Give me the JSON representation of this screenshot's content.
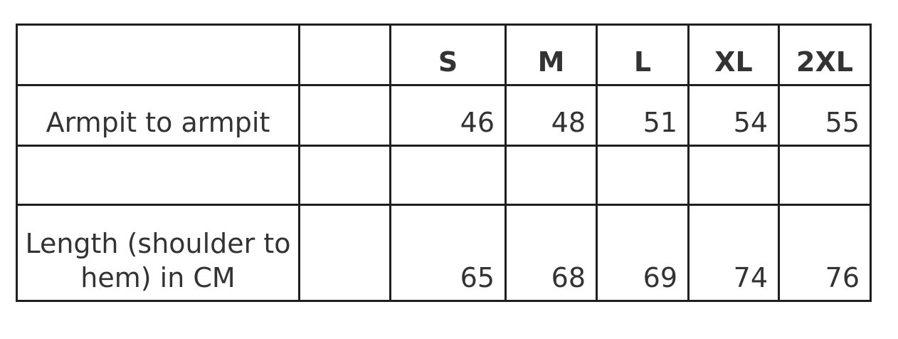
{
  "page": {
    "background_color": "#ffffff",
    "text_color": "#333333",
    "border_color": "#1f1f1f"
  },
  "table": {
    "header": {
      "label_col": "",
      "spacer_col": "",
      "sizes": [
        "S",
        "M",
        "L",
        "XL",
        "2XL"
      ]
    },
    "rows": {
      "armpit": {
        "label": "Armpit to armpit",
        "spacer": "",
        "values": [
          "46",
          "48",
          "51",
          "54",
          "55"
        ]
      },
      "empty": {
        "label": "",
        "spacer": "",
        "values": [
          "",
          "",
          "",
          "",
          ""
        ]
      },
      "length": {
        "label": "Length (shoulder to hem) in CM",
        "label_lines": [
          "Length (shoulder to",
          "hem) in CM"
        ],
        "spacer": "",
        "values": [
          "65",
          "68",
          "69",
          "74",
          "76"
        ]
      }
    }
  },
  "chart_data": {
    "type": "table",
    "title": "",
    "columns": [
      "",
      "",
      "S",
      "M",
      "L",
      "XL",
      "2XL"
    ],
    "rows": [
      [
        "Armpit to armpit",
        "",
        "46",
        "48",
        "51",
        "54",
        "55"
      ],
      [
        "",
        "",
        "",
        "",
        "",
        "",
        ""
      ],
      [
        "Length (shoulder to hem) in CM",
        "",
        "65",
        "68",
        "69",
        "74",
        "76"
      ]
    ],
    "series": [
      {
        "name": "Armpit to armpit",
        "categories": [
          "S",
          "M",
          "L",
          "XL",
          "2XL"
        ],
        "values": [
          46,
          48,
          51,
          54,
          55
        ]
      },
      {
        "name": "Length (shoulder to hem) in CM",
        "categories": [
          "S",
          "M",
          "L",
          "XL",
          "2XL"
        ],
        "values": [
          65,
          68,
          69,
          74,
          76
        ]
      }
    ],
    "units": "cm",
    "grid": true,
    "legend_position": "none"
  }
}
